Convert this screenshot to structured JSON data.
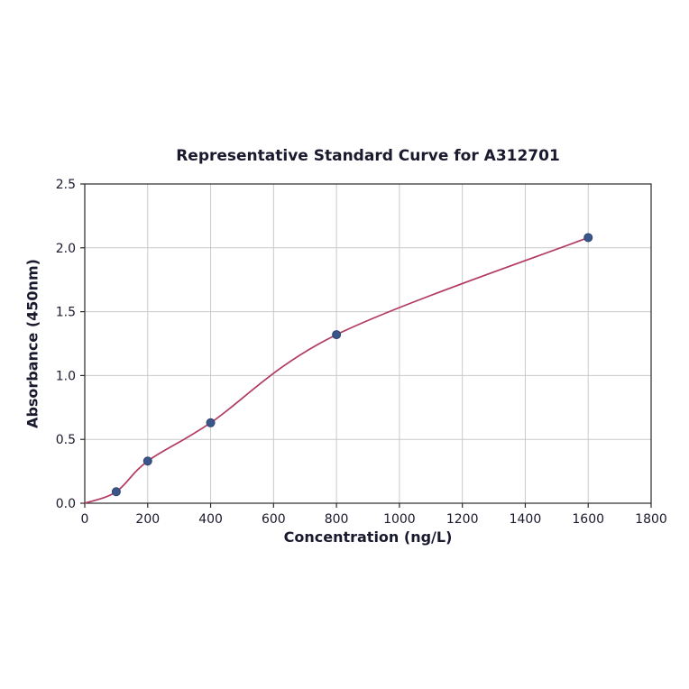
{
  "chart_data": {
    "type": "scatter",
    "title": "Representative Standard Curve for A312701",
    "xlabel": "Concentration (ng/L)",
    "ylabel": "Absorbance (450nm)",
    "xlim": [
      0,
      1800
    ],
    "ylim": [
      0,
      2.5
    ],
    "grid": true,
    "legend_position": "none",
    "xticks": [
      0,
      200,
      400,
      600,
      800,
      1000,
      1200,
      1400,
      1600,
      1800
    ],
    "xtick_labels": [
      "0",
      "200",
      "400",
      "600",
      "800",
      "1000",
      "1200",
      "1400",
      "1600",
      "1800"
    ],
    "yticks": [
      0,
      0.5,
      1.0,
      1.5,
      2.0,
      2.5
    ],
    "ytick_labels": [
      "0.0",
      "0.5",
      "1.0",
      "1.5",
      "2.0",
      "2.5"
    ],
    "points": {
      "x": [
        100,
        200,
        400,
        800,
        1600
      ],
      "y": [
        0.09,
        0.33,
        0.63,
        1.32,
        2.08
      ]
    },
    "curve": [
      [
        0,
        0.0
      ],
      [
        100,
        0.09
      ],
      [
        200,
        0.33
      ],
      [
        400,
        0.63
      ],
      [
        800,
        1.32
      ],
      [
        1600,
        2.08
      ]
    ],
    "colors": {
      "curve": "#b23a60",
      "point": "#3b5689",
      "point_edge": "#2d4370",
      "grid": "#c9c9c9",
      "axis": "#2a2a2a",
      "text": "#1a1a2e"
    }
  }
}
